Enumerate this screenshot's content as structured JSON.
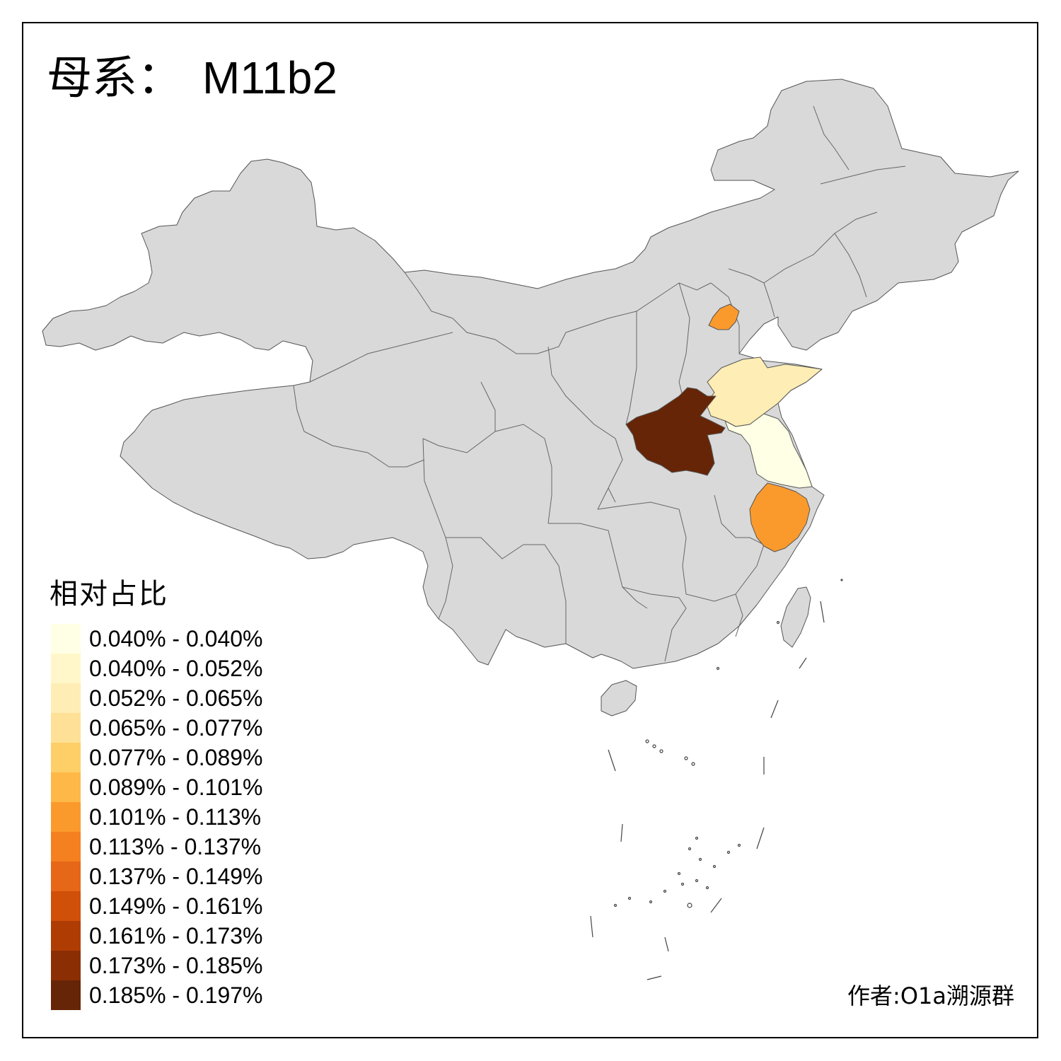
{
  "title": {
    "prefix": "母系：",
    "haplogroup": "M11b2"
  },
  "legend": {
    "title": "相对占比",
    "items": [
      {
        "label": "0.040% - 0.040%",
        "color": "#FFFFE5"
      },
      {
        "label": "0.040% - 0.052%",
        "color": "#FFF7C9"
      },
      {
        "label": "0.052% - 0.065%",
        "color": "#FEEDB4"
      },
      {
        "label": "0.065% - 0.077%",
        "color": "#FEE196"
      },
      {
        "label": "0.077% - 0.089%",
        "color": "#FECE67"
      },
      {
        "label": "0.089% - 0.101%",
        "color": "#FEB847"
      },
      {
        "label": "0.101% - 0.113%",
        "color": "#FB9A2C"
      },
      {
        "label": "0.113% - 0.137%",
        "color": "#F4801F"
      },
      {
        "label": "0.137% - 0.149%",
        "color": "#E56717"
      },
      {
        "label": "0.149% - 0.161%",
        "color": "#D04F09"
      },
      {
        "label": "0.161% - 0.173%",
        "color": "#AF3D03"
      },
      {
        "label": "0.173% - 0.185%",
        "color": "#8C2E04"
      },
      {
        "label": "0.185% - 0.197%",
        "color": "#662506"
      }
    ]
  },
  "credit": "作者:O1a溯源群",
  "colors": {
    "no_data": "#D9D9D9",
    "border": "#555555",
    "background": "#FFFFFF"
  },
  "highlighted_regions": [
    {
      "name": "Henan",
      "class": "0.185% - 0.197%",
      "color": "#662506"
    },
    {
      "name": "Beijing",
      "class": "0.101% - 0.113%",
      "color": "#FB9A2C"
    },
    {
      "name": "Zhejiang",
      "class": "0.101% - 0.113%",
      "color": "#FB9A2C"
    },
    {
      "name": "Shandong",
      "class": "0.052% - 0.065%",
      "color": "#FEEDB4"
    },
    {
      "name": "Jiangsu",
      "class": "0.040% - 0.040%",
      "color": "#FFFFE5"
    }
  ]
}
